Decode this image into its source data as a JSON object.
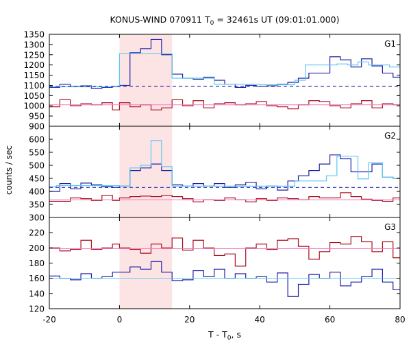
{
  "chart_data": {
    "type": "line",
    "title_main": "KONUS-WIND 070911 T",
    "title_sub": "0",
    "title_rest": " = 32461s UT (09:01:01.000)",
    "xlabel_main": "T - T",
    "xlabel_sub": "0",
    "xlabel_rest": ", s",
    "ylabel": "counts / sec",
    "xlim": [
      -20,
      80
    ],
    "x_ticks": [
      -20,
      0,
      20,
      40,
      60,
      80
    ],
    "x_tick_labels": [
      "-20",
      "0",
      "20",
      "40",
      "60",
      "80"
    ],
    "highlight": {
      "x0": 0,
      "x1": 15
    },
    "colors": {
      "dark_blue": "#1f1fa8",
      "light_blue": "#5cc8f0",
      "dark_red": "#a8101c",
      "pink": "#f07cc4",
      "highlight": "#fde4e4"
    },
    "panels": [
      {
        "label": "G1",
        "ylim": [
          900,
          1350
        ],
        "y_ticks": [
          900,
          950,
          1000,
          1050,
          1100,
          1150,
          1200,
          1250,
          1300,
          1350
        ],
        "y_tick_labels": [
          "900",
          "950",
          "1000",
          "1050",
          "1100",
          "1150",
          "1200",
          "1250",
          "1300",
          "1350"
        ],
        "series": [
          {
            "name": "G1 counts",
            "color": "dark_blue",
            "style": "step",
            "x": [
              -20,
              -17,
              -14,
              -11,
              -8,
              -5,
              -2,
              0,
              3,
              6,
              9,
              12,
              15,
              18,
              21,
              24,
              27,
              30,
              33,
              36,
              39,
              42,
              45,
              48,
              51,
              54,
              57,
              60,
              63,
              66,
              69,
              72,
              75,
              78,
              80
            ],
            "y": [
              1090,
              1105,
              1095,
              1098,
              1085,
              1090,
              1095,
              1100,
              1260,
              1280,
              1325,
              1250,
              1155,
              1135,
              1130,
              1140,
              1125,
              1105,
              1090,
              1100,
              1095,
              1098,
              1105,
              1115,
              1135,
              1160,
              1160,
              1240,
              1225,
              1190,
              1230,
              1195,
              1160,
              1140,
              1140
            ]
          },
          {
            "name": "G1 model",
            "color": "light_blue",
            "style": "step",
            "x": [
              -20,
              0,
              15,
              27,
              40,
              50,
              53,
              59,
              62,
              65,
              68,
              71,
              74,
              77,
              80
            ],
            "y": [
              1093,
              1255,
              1135,
              1105,
              1103,
              1125,
              1200,
              1200,
              1205,
              1200,
              1215,
              1200,
              1200,
              1190,
              1190
            ]
          },
          {
            "name": "G1 background",
            "color": "dark_blue",
            "style": "dashed",
            "x": [
              -20,
              80
            ],
            "y": [
              1095,
              1095
            ]
          },
          {
            "name": "G1 high band",
            "color": "dark_red",
            "style": "step",
            "x": [
              -20,
              -17,
              -14,
              -11,
              -8,
              -5,
              -2,
              0,
              3,
              6,
              9,
              12,
              15,
              18,
              21,
              24,
              27,
              30,
              33,
              36,
              39,
              42,
              45,
              48,
              51,
              54,
              57,
              60,
              63,
              66,
              69,
              72,
              75,
              78,
              80
            ],
            "y": [
              995,
              1030,
              1000,
              1010,
              1005,
              1015,
              980,
              1015,
              995,
              1005,
              980,
              990,
              1030,
              1000,
              1025,
              990,
              1010,
              1015,
              1005,
              1010,
              1020,
              1000,
              995,
              985,
              1005,
              1025,
              1020,
              1000,
              990,
              1010,
              1025,
              990,
              1010,
              1005,
              975
            ]
          },
          {
            "name": "G1 high model",
            "color": "pink",
            "style": "flat",
            "x": [
              -20,
              80
            ],
            "y": [
              1005,
              1005
            ]
          }
        ]
      },
      {
        "label": "G2",
        "ylim": [
          300,
          650
        ],
        "y_ticks": [
          300,
          350,
          400,
          450,
          500,
          550,
          600
        ],
        "y_tick_labels": [
          "300",
          "350",
          "400",
          "450",
          "500",
          "550",
          "600"
        ],
        "series": [
          {
            "name": "G2 counts",
            "color": "dark_blue",
            "style": "step",
            "x": [
              -20,
              -17,
              -14,
              -11,
              -8,
              -5,
              -2,
              0,
              3,
              6,
              9,
              12,
              15,
              18,
              21,
              24,
              27,
              30,
              33,
              36,
              39,
              42,
              45,
              48,
              51,
              54,
              57,
              60,
              63,
              66,
              69,
              72,
              75,
              78,
              80
            ],
            "y": [
              400,
              430,
              410,
              432,
              425,
              418,
              415,
              420,
              480,
              490,
              505,
              480,
              425,
              420,
              430,
              420,
              430,
              415,
              425,
              435,
              410,
              420,
              405,
              440,
              460,
              480,
              505,
              540,
              525,
              475,
              475,
              505,
              455,
              450,
              450
            ]
          },
          {
            "name": "G2 model",
            "color": "light_blue",
            "style": "step",
            "x": [
              -20,
              -18,
              0,
              3,
              6,
              9,
              12,
              15,
              24,
              33,
              40,
              50,
              53,
              59,
              62,
              65,
              68,
              71,
              75,
              78,
              80
            ],
            "y": [
              418,
              422,
              420,
              490,
              500,
              595,
              495,
              420,
              420,
              420,
              420,
              440,
              440,
              460,
              535,
              535,
              448,
              510,
              455,
              450,
              450
            ]
          },
          {
            "name": "G2 background",
            "color": "dark_blue",
            "style": "dashed",
            "x": [
              -20,
              80
            ],
            "y": [
              415,
              415
            ]
          },
          {
            "name": "G2 high band",
            "color": "dark_red",
            "style": "step",
            "x": [
              -20,
              -17,
              -14,
              -11,
              -8,
              -5,
              -2,
              0,
              3,
              6,
              9,
              12,
              15,
              18,
              21,
              24,
              27,
              30,
              33,
              36,
              39,
              42,
              45,
              48,
              51,
              54,
              57,
              60,
              63,
              66,
              69,
              72,
              75,
              78,
              80
            ],
            "y": [
              362,
              362,
              375,
              372,
              365,
              385,
              365,
              375,
              380,
              382,
              380,
              385,
              380,
              372,
              360,
              368,
              365,
              375,
              368,
              360,
              372,
              365,
              375,
              372,
              368,
              380,
              375,
              375,
              395,
              380,
              370,
              365,
              362,
              375,
              360
            ]
          },
          {
            "name": "G2 high model",
            "color": "pink",
            "style": "flat",
            "x": [
              -20,
              80
            ],
            "y": [
              368,
              368
            ]
          }
        ]
      },
      {
        "label": "G3",
        "ylim": [
          120,
          240
        ],
        "y_ticks": [
          120,
          140,
          160,
          180,
          200,
          220
        ],
        "y_tick_labels": [
          "120",
          "140",
          "160",
          "180",
          "200",
          "220"
        ],
        "series": [
          {
            "name": "G3 high band",
            "color": "dark_red",
            "style": "step",
            "x": [
              -20,
              -17,
              -14,
              -11,
              -8,
              -5,
              -2,
              0,
              3,
              6,
              9,
              12,
              15,
              18,
              21,
              24,
              27,
              30,
              33,
              36,
              39,
              42,
              45,
              48,
              51,
              54,
              57,
              60,
              63,
              66,
              69,
              72,
              75,
              78,
              80
            ],
            "y": [
              200,
              196,
              198,
              210,
              198,
              200,
              205,
              200,
              198,
              193,
              205,
              200,
              213,
              197,
              210,
              200,
              190,
              192,
              176,
              200,
              205,
              198,
              210,
              212,
              202,
              185,
              195,
              207,
              205,
              215,
              208,
              195,
              208,
              187,
              195
            ]
          },
          {
            "name": "G3 high model",
            "color": "pink",
            "style": "flat",
            "x": [
              -20,
              80
            ],
            "y": [
              199,
              199
            ]
          },
          {
            "name": "G3 counts",
            "color": "dark_blue",
            "style": "step",
            "x": [
              -20,
              -17,
              -14,
              -11,
              -8,
              -5,
              -2,
              0,
              3,
              6,
              9,
              12,
              15,
              18,
              21,
              24,
              27,
              30,
              33,
              36,
              39,
              42,
              45,
              48,
              51,
              54,
              57,
              60,
              63,
              66,
              69,
              72,
              75,
              78,
              80
            ],
            "y": [
              163,
              160,
              158,
              166,
              160,
              162,
              168,
              168,
              175,
              172,
              182,
              168,
              157,
              158,
              170,
              162,
              172,
              160,
              166,
              160,
              162,
              155,
              167,
              136,
              152,
              165,
              160,
              168,
              150,
              155,
              162,
              172,
              155,
              145,
              150
            ]
          },
          {
            "name": "G3 model",
            "color": "light_blue",
            "style": "flat",
            "x": [
              -20,
              80
            ],
            "y": [
              160,
              160
            ]
          }
        ]
      }
    ]
  }
}
